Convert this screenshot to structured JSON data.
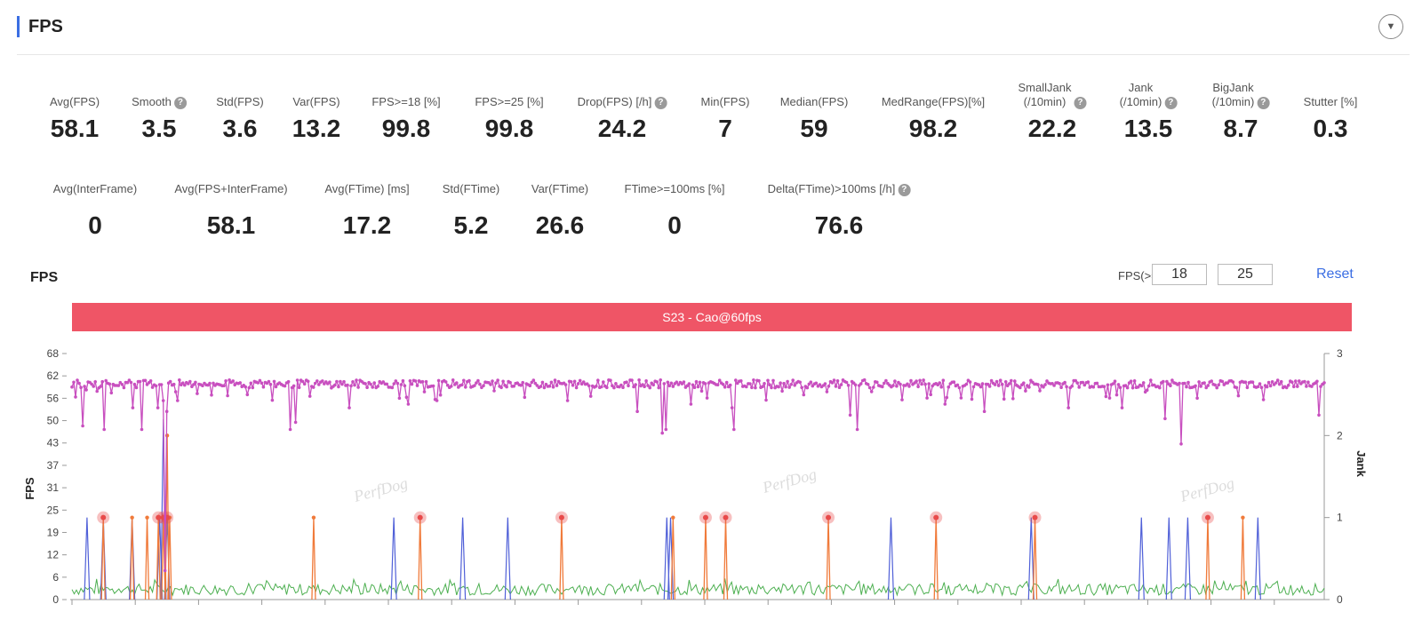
{
  "header": {
    "title": "FPS"
  },
  "icons": {
    "collapse": "chevron-down-circle-icon",
    "help": "question-mark-circle-icon"
  },
  "stats_row1": [
    {
      "label": "Avg(FPS)",
      "value": "58.1",
      "help": false
    },
    {
      "label": "Smooth",
      "value": "3.5",
      "help": true
    },
    {
      "label": "Std(FPS)",
      "value": "3.6",
      "help": false
    },
    {
      "label": "Var(FPS)",
      "value": "13.2",
      "help": false
    },
    {
      "label": "FPS>=18 [%]",
      "value": "99.8",
      "help": false
    },
    {
      "label": "FPS>=25 [%]",
      "value": "99.8",
      "help": false
    },
    {
      "label": "Drop(FPS) [/h]",
      "value": "24.2",
      "help": true
    },
    {
      "label": "Min(FPS)",
      "value": "7",
      "help": false
    },
    {
      "label": "Median(FPS)",
      "value": "59",
      "help": false
    },
    {
      "label": "MedRange(FPS)[%]",
      "value": "98.2",
      "help": false
    },
    {
      "label": "SmallJank\n(/10min)",
      "value": "22.2",
      "help": true
    },
    {
      "label": "Jank\n(/10min)",
      "value": "13.5",
      "help": true
    },
    {
      "label": "BigJank\n(/10min)",
      "value": "8.7",
      "help": true
    },
    {
      "label": "Stutter [%]",
      "value": "0.3",
      "help": false
    }
  ],
  "stats_row2": [
    {
      "label": "Avg(InterFrame)",
      "value": "0",
      "help": false
    },
    {
      "label": "Avg(FPS+InterFrame)",
      "value": "58.1",
      "help": false
    },
    {
      "label": "Avg(FTime) [ms]",
      "value": "17.2",
      "help": false
    },
    {
      "label": "Std(FTime)",
      "value": "5.2",
      "help": false
    },
    {
      "label": "Var(FTime)",
      "value": "26.6",
      "help": false
    },
    {
      "label": "FTime>=100ms [%]",
      "value": "0",
      "help": false
    },
    {
      "label": "Delta(FTime)>100ms [/h]",
      "value": "76.6",
      "help": true
    }
  ],
  "chart_section": {
    "title": "FPS",
    "threshold_label": "FPS(>=)",
    "threshold_low": "18",
    "threshold_high": "25",
    "reset_label": "Reset",
    "series_bar_label": "S23 - Cao@60fps",
    "watermark": "PerfDog"
  },
  "chart_data": {
    "type": "line",
    "y_left": {
      "label": "FPS",
      "ticks": [
        "0",
        "6",
        "12",
        "19",
        "25",
        "31",
        "37",
        "43",
        "50",
        "56",
        "62",
        "68"
      ],
      "range": [
        0,
        68
      ]
    },
    "y_right": {
      "label": "Jank",
      "ticks": [
        "0",
        "1",
        "2",
        "3"
      ],
      "range": [
        0,
        3
      ]
    },
    "fps_color": "#c84fbf",
    "interframe_color": "#4caf50",
    "jank_color": "#5060d8",
    "bigjank_color": "#f07a3a",
    "stutter_color": "#e84a4a",
    "fps_dips": [
      {
        "t": 0.003,
        "fps": 56
      },
      {
        "t": 0.008,
        "fps": 48
      },
      {
        "t": 0.025,
        "fps": 47
      },
      {
        "t": 0.048,
        "fps": 53
      },
      {
        "t": 0.056,
        "fps": 47
      },
      {
        "t": 0.068,
        "fps": 53
      },
      {
        "t": 0.073,
        "fps": 55
      },
      {
        "t": 0.076,
        "fps": 52
      },
      {
        "t": 0.074,
        "fps": 8
      },
      {
        "t": 0.084,
        "fps": 55
      },
      {
        "t": 0.175,
        "fps": 47
      },
      {
        "t": 0.179,
        "fps": 49
      },
      {
        "t": 0.221,
        "fps": 53
      },
      {
        "t": 0.269,
        "fps": 54
      },
      {
        "t": 0.396,
        "fps": 55
      },
      {
        "t": 0.452,
        "fps": 52
      },
      {
        "t": 0.471,
        "fps": 46
      },
      {
        "t": 0.474,
        "fps": 47
      },
      {
        "t": 0.494,
        "fps": 54
      },
      {
        "t": 0.527,
        "fps": 53
      },
      {
        "t": 0.528,
        "fps": 47
      },
      {
        "t": 0.622,
        "fps": 51
      },
      {
        "t": 0.627,
        "fps": 47
      },
      {
        "t": 0.697,
        "fps": 54
      },
      {
        "t": 0.728,
        "fps": 52
      },
      {
        "t": 0.795,
        "fps": 53
      },
      {
        "t": 0.838,
        "fps": 53
      },
      {
        "t": 0.873,
        "fps": 50
      },
      {
        "t": 0.886,
        "fps": 43
      },
      {
        "t": 0.995,
        "fps": 51
      }
    ],
    "jank_spikes": [
      0.012,
      0.025,
      0.048,
      0.07,
      0.073,
      0.076,
      0.257,
      0.312,
      0.348,
      0.475,
      0.478,
      0.654,
      0.766,
      0.854,
      0.876,
      0.891,
      0.947
    ],
    "bigjank_spikes": [
      0.025,
      0.048,
      0.06,
      0.069,
      0.073,
      0.076,
      0.078,
      0.193,
      0.278,
      0.391,
      0.48,
      0.506,
      0.522,
      0.604,
      0.69,
      0.769,
      0.907,
      0.935
    ],
    "stutter_markers": [
      0.025,
      0.069,
      0.073,
      0.076,
      0.278,
      0.391,
      0.506,
      0.522,
      0.604,
      0.69,
      0.769,
      0.907
    ],
    "markers": [
      {
        "t": 0.025,
        "jank": 1
      },
      {
        "t": 0.069,
        "jank": 1
      },
      {
        "t": 0.073,
        "jank": 1
      },
      {
        "t": 0.076,
        "jank": 1
      },
      {
        "t": 0.278,
        "jank": 1
      },
      {
        "t": 0.391,
        "jank": 1
      },
      {
        "t": 0.506,
        "jank": 1
      },
      {
        "t": 0.522,
        "jank": 1
      },
      {
        "t": 0.604,
        "jank": 1
      },
      {
        "t": 0.69,
        "jank": 1
      },
      {
        "t": 0.769,
        "jank": 1
      },
      {
        "t": 0.907,
        "jank": 1
      }
    ]
  }
}
